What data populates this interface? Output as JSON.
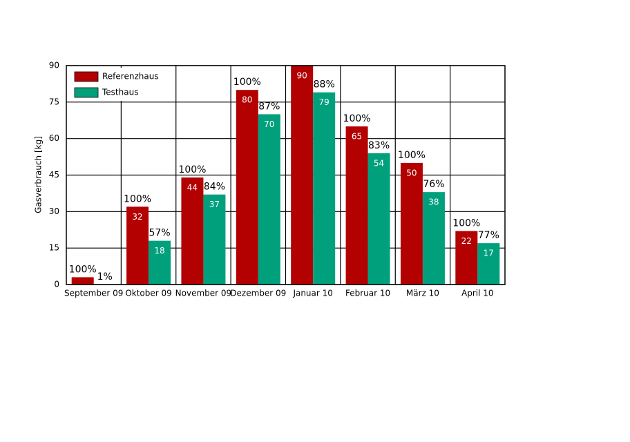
{
  "chart_data": {
    "type": "bar",
    "y_label": "Gasverbrauch [kg]",
    "categories": [
      "September 09",
      "Oktober 09",
      "November 09",
      "Dezember 09",
      "Januar 10",
      "Februar 10",
      "März 10",
      "April 10"
    ],
    "series": [
      {
        "name": "Referenzhaus",
        "color": "#b30000",
        "label_color": "#9e0000",
        "values": [
          3,
          32,
          44,
          80,
          90,
          65,
          50,
          22
        ],
        "percent_labels": [
          "100%",
          "100%",
          "100%",
          "100%",
          null,
          "100%",
          "100%",
          "100%"
        ]
      },
      {
        "name": "Testhaus",
        "color": "#00a07d",
        "label_color": "#00a07d",
        "values": [
          0.03,
          18,
          37,
          70,
          79,
          54,
          38,
          17
        ],
        "percent_labels": [
          "1%",
          "57%",
          "84%",
          "87%",
          "88%",
          "83%",
          "76%",
          "77%"
        ]
      }
    ],
    "ylim": [
      0,
      90
    ],
    "yticks": [
      0,
      15,
      30,
      45,
      60,
      75,
      90
    ],
    "grid": true,
    "legend": "top-left"
  }
}
